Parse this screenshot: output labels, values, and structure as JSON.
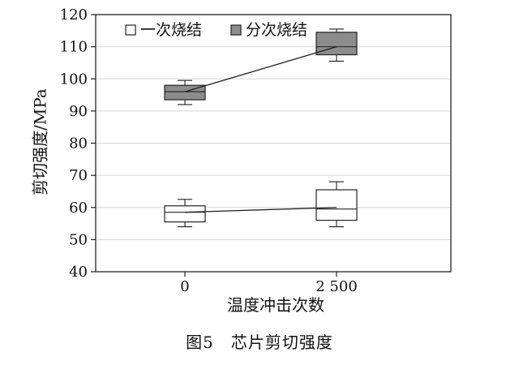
{
  "chart_data": {
    "type": "box",
    "title": "",
    "xlabel": "温度冲击次数",
    "ylabel": "剪切强度/MPa",
    "categories": [
      "0",
      "2 500"
    ],
    "ylim": [
      40,
      120
    ],
    "yticks": [
      40,
      50,
      60,
      70,
      80,
      90,
      100,
      110,
      120
    ],
    "grid": true,
    "legend_position": "top-left",
    "series": [
      {
        "name": "一次烧结",
        "color": "#ffffff",
        "boxes": [
          {
            "min": 54,
            "q1": 55.5,
            "median": 58.5,
            "q3": 60.5,
            "max": 62.5
          },
          {
            "min": 54,
            "q1": 56,
            "median": 59.5,
            "q3": 65.5,
            "max": 68
          }
        ],
        "mean_line": [
          58.5,
          60
        ]
      },
      {
        "name": "分次烧结",
        "color": "#8c8c8c",
        "boxes": [
          {
            "min": 92,
            "q1": 93.5,
            "median": 96,
            "q3": 98,
            "max": 99.5
          },
          {
            "min": 105.5,
            "q1": 107.5,
            "median": 110,
            "q3": 114.5,
            "max": 115.5
          }
        ],
        "mean_line": [
          96,
          110
        ]
      }
    ]
  },
  "caption": "图5　芯片剪切强度"
}
